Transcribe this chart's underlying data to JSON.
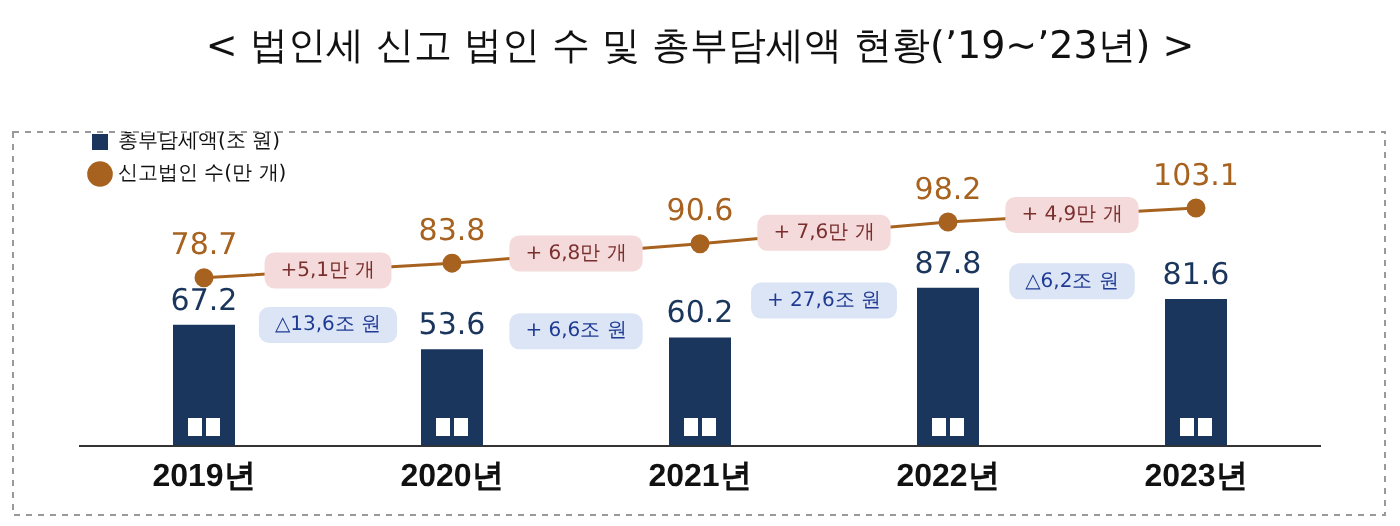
{
  "chart_data": {
    "type": "bar",
    "title": "< 법인세 신고 법인 수 및 총부담세액 현황(’19~’23년) >",
    "categories": [
      "2019년",
      "2020년",
      "2021년",
      "2022년",
      "2023년"
    ],
    "series": [
      {
        "name": "총부담세액(조 원)",
        "color": "#1b365d",
        "values": [
          67.2,
          53.6,
          60.2,
          87.8,
          81.6
        ]
      },
      {
        "name": "신고법인 수(만 개)",
        "type": "line",
        "axis": "y2",
        "color": "#a8621f",
        "values": [
          78.7,
          83.8,
          90.6,
          98.2,
          103.1
        ]
      }
    ],
    "annotations": [
      "+5,1만 개",
      "+ 6,8만 개",
      "+ 7,6만 개",
      "+ 4,9만 개",
      "△13,6조 원",
      "+ 6,6조 원",
      "+ 27,6조 원",
      "△6,2조 원"
    ],
    "ylim": [
      0,
      175
    ],
    "y2lim": [
      20,
      130
    ],
    "tick_labels": "x",
    "data_labels": true,
    "legend": "top left",
    "marker": "circle",
    "grid": false
  }
}
